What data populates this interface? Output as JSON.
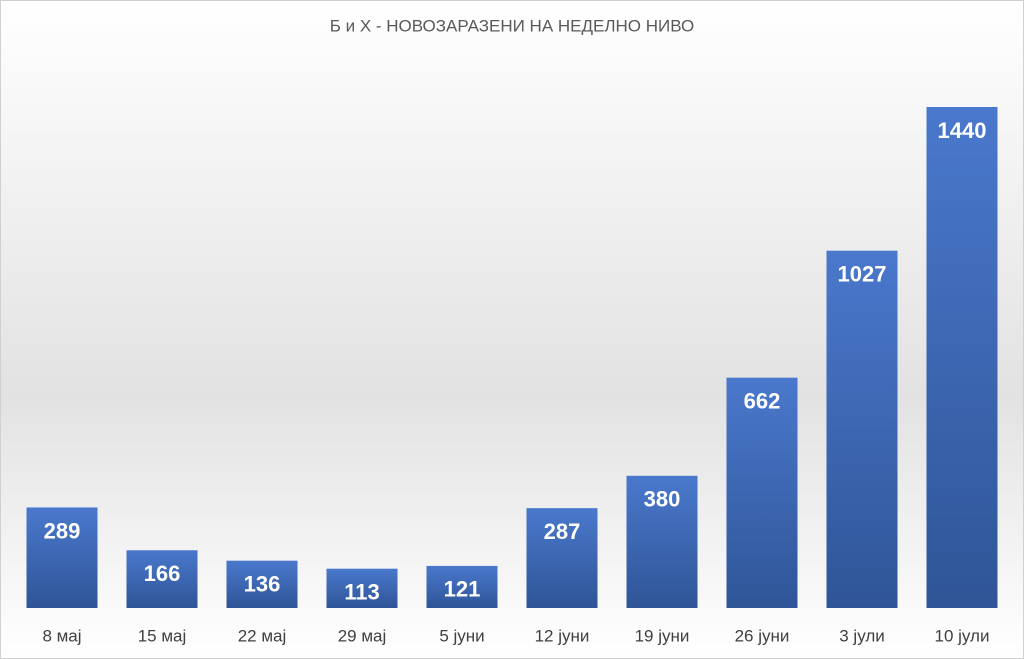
{
  "chart_data": {
    "type": "bar",
    "title": "Б и Х - НОВОЗАРАЗЕНИ НА НЕДЕЛНО НИВО",
    "categories": [
      "8 мај",
      "15 мај",
      "22 мај",
      "29 мај",
      "5 јуни",
      "12 јуни",
      "19 јуни",
      "26 јуни",
      "3 јули",
      "10 јули"
    ],
    "values": [
      289,
      166,
      136,
      113,
      121,
      287,
      380,
      662,
      1027,
      1440
    ],
    "color": "#4472c4"
  }
}
